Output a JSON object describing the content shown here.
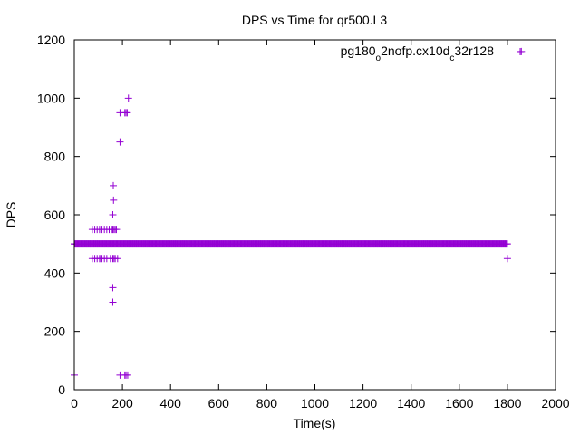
{
  "chart_data": {
    "type": "scatter",
    "title": "DPS vs Time for qr500.L3",
    "xlabel": "Time(s)",
    "ylabel": "DPS",
    "xlim": [
      0,
      2000
    ],
    "ylim": [
      0,
      1200
    ],
    "xticks": [
      0,
      200,
      400,
      600,
      800,
      1000,
      1200,
      1400,
      1600,
      1800,
      2000
    ],
    "yticks": [
      0,
      200,
      400,
      600,
      800,
      1000,
      1200
    ],
    "grid": false,
    "legend_position": "top-right",
    "marker": "plus",
    "color": "#9400d3",
    "series": [
      {
        "name": "pg180_o2nofp.cx10d_c32r128",
        "name_parts": [
          {
            "text": "pg180",
            "sub": false
          },
          {
            "text": "o",
            "sub": true
          },
          {
            "text": "2nofp.cx10d",
            "sub": false
          },
          {
            "text": "c",
            "sub": true
          },
          {
            "text": "32r128",
            "sub": false
          }
        ],
        "dense_runs": [
          {
            "y": 500,
            "x_start": 0,
            "x_end": 1800,
            "step": 3
          }
        ],
        "points": [
          [
            0,
            50
          ],
          [
            0,
            500
          ],
          [
            1800,
            450
          ],
          [
            1858,
            1160
          ],
          [
            75,
            550
          ],
          [
            85,
            550
          ],
          [
            95,
            550
          ],
          [
            105,
            550
          ],
          [
            115,
            550
          ],
          [
            125,
            550
          ],
          [
            135,
            550
          ],
          [
            145,
            550
          ],
          [
            155,
            550
          ],
          [
            160,
            550
          ],
          [
            165,
            550
          ],
          [
            170,
            550
          ],
          [
            175,
            550
          ],
          [
            75,
            450
          ],
          [
            85,
            450
          ],
          [
            95,
            450
          ],
          [
            105,
            450
          ],
          [
            110,
            450
          ],
          [
            115,
            450
          ],
          [
            125,
            450
          ],
          [
            135,
            450
          ],
          [
            150,
            450
          ],
          [
            160,
            450
          ],
          [
            165,
            450
          ],
          [
            170,
            450
          ],
          [
            180,
            450
          ],
          [
            160,
            600
          ],
          [
            163,
            650
          ],
          [
            162,
            700
          ],
          [
            160,
            350
          ],
          [
            160,
            300
          ],
          [
            190,
            850
          ],
          [
            190,
            950
          ],
          [
            210,
            950
          ],
          [
            215,
            950
          ],
          [
            220,
            950
          ],
          [
            225,
            1000
          ],
          [
            190,
            50
          ],
          [
            210,
            50
          ],
          [
            215,
            50
          ],
          [
            222,
            50
          ]
        ]
      }
    ]
  }
}
